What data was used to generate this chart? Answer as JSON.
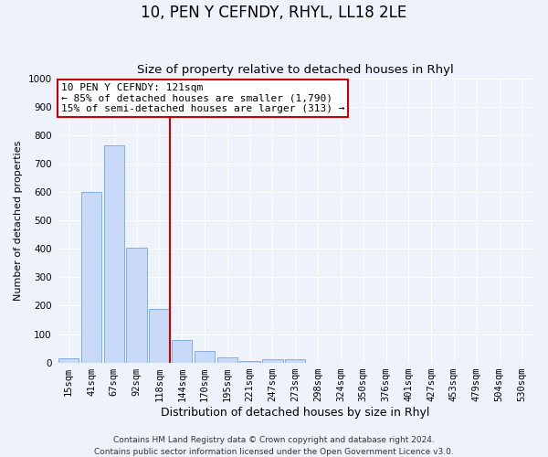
{
  "title": "10, PEN Y CEFNDY, RHYL, LL18 2LE",
  "subtitle": "Size of property relative to detached houses in Rhyl",
  "xlabel": "Distribution of detached houses by size in Rhyl",
  "ylabel": "Number of detached properties",
  "bar_labels": [
    "15sqm",
    "41sqm",
    "67sqm",
    "92sqm",
    "118sqm",
    "144sqm",
    "170sqm",
    "195sqm",
    "221sqm",
    "247sqm",
    "273sqm",
    "298sqm",
    "324sqm",
    "350sqm",
    "376sqm",
    "401sqm",
    "427sqm",
    "453sqm",
    "479sqm",
    "504sqm",
    "530sqm"
  ],
  "bar_values": [
    15,
    600,
    765,
    405,
    190,
    78,
    40,
    18,
    5,
    13,
    12,
    0,
    0,
    0,
    0,
    0,
    0,
    0,
    0,
    0,
    0
  ],
  "bar_color": "#c9daf8",
  "bar_edge_color": "#6fa8dc",
  "vline_color": "#cc0000",
  "annotation_title": "10 PEN Y CEFNDY: 121sqm",
  "annotation_line1": "← 85% of detached houses are smaller (1,790)",
  "annotation_line2": "15% of semi-detached houses are larger (313) →",
  "annotation_box_color": "#ffffff",
  "annotation_box_edge": "#cc0000",
  "ylim": [
    0,
    1000
  ],
  "yticks": [
    0,
    100,
    200,
    300,
    400,
    500,
    600,
    700,
    800,
    900,
    1000
  ],
  "footer_line1": "Contains HM Land Registry data © Crown copyright and database right 2024.",
  "footer_line2": "Contains public sector information licensed under the Open Government Licence v3.0.",
  "bg_color": "#eef2fb",
  "plot_bg_color": "#eef2fb",
  "grid_color": "#ffffff",
  "title_fontsize": 12,
  "subtitle_fontsize": 9.5,
  "xlabel_fontsize": 9,
  "ylabel_fontsize": 8,
  "tick_fontsize": 7.5,
  "annotation_fontsize": 8,
  "footer_fontsize": 6.5
}
